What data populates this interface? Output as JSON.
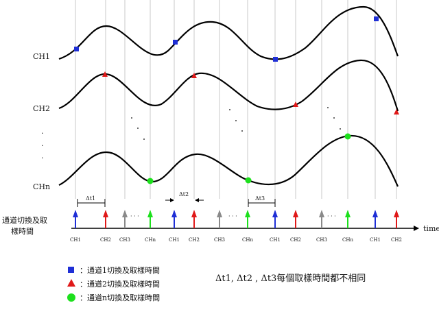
{
  "channels": [
    "CH1",
    "CH2",
    "CHn"
  ],
  "ellipsis": ".",
  "dots": "· · ·",
  "left_label_line1": "通道切換及取",
  "left_label_line2": "樣時間",
  "time_axis_label": "time",
  "deltas": [
    "Δt1",
    "Δt2",
    "Δt3"
  ],
  "arrow_labels": [
    "CH1",
    "CH2",
    "CH3",
    "CHn",
    "CH1",
    "CH2",
    "CH3",
    "CHn",
    "CH1",
    "CH2",
    "CH3",
    "CHn",
    "CH1",
    "CH2"
  ],
  "legend": [
    {
      "shape": "square",
      "color": "#1f2fd6",
      "text": "：通道1切換及取樣時間"
    },
    {
      "shape": "triangle",
      "color": "#e01919",
      "text": "：通道2切換及取樣時間"
    },
    {
      "shape": "circle",
      "color": "#1de01d",
      "text": "：通道n切換及取樣時間"
    }
  ],
  "note": "Δt1, Δt2 , Δt3每個取樣時間都不相同",
  "colors": {
    "ch1": "#1f2fd6",
    "ch2": "#e01919",
    "chn": "#1de01d",
    "ch3": "#8a8a8a",
    "gridline": "#c8c8c8",
    "curve": "#000000"
  }
}
